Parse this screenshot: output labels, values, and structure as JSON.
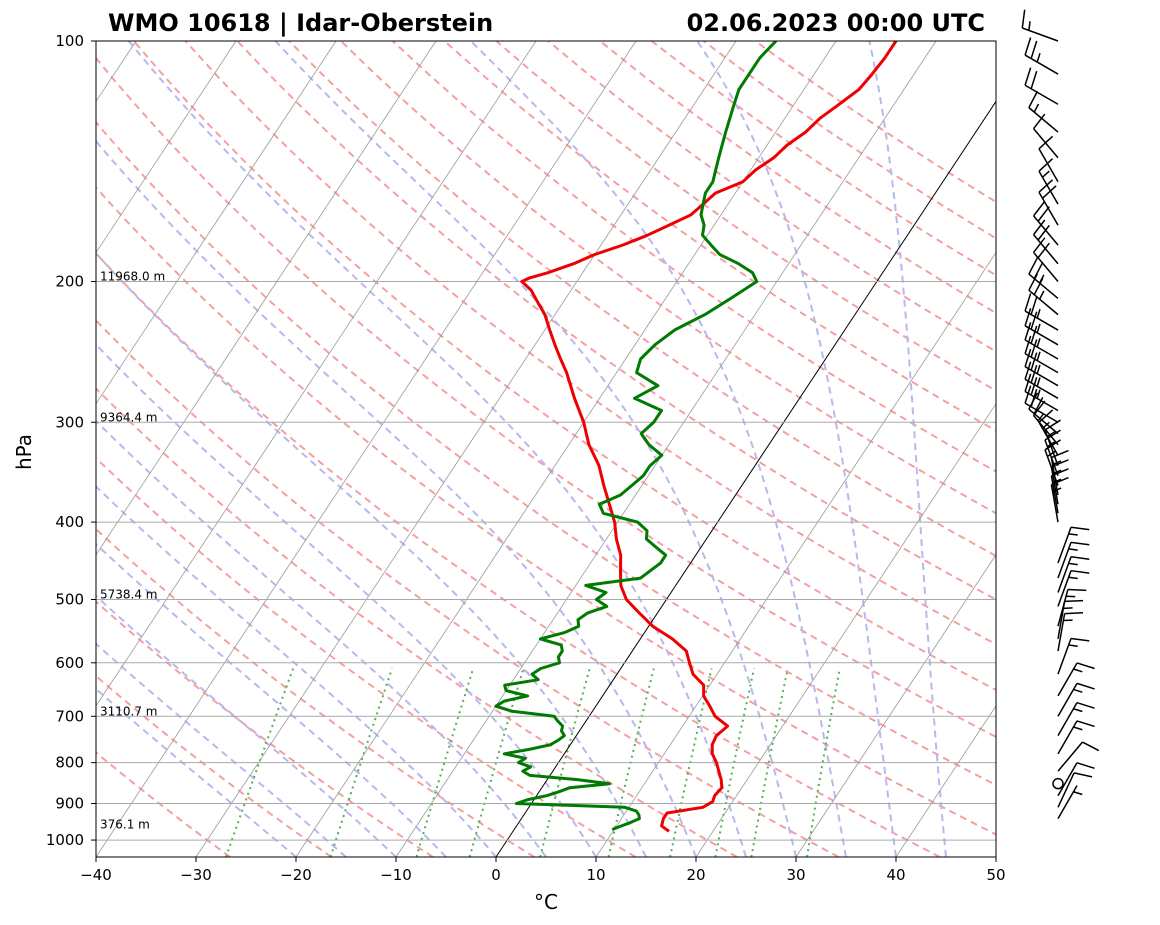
{
  "header": {
    "title_left": "WMO 10618 | Idar-Oberstein",
    "title_right": "02.06.2023 00:00 UTC"
  },
  "chart_data": {
    "type": "line",
    "subtype": "skew-t log-p",
    "xlabel": "°C",
    "ylabel": "hPa",
    "xlim": [
      -40,
      50
    ],
    "ylim": [
      1050,
      100
    ],
    "x_ticks": [
      -40,
      -30,
      -20,
      -10,
      0,
      10,
      20,
      30,
      40,
      50
    ],
    "x_tick_labels": [
      "−40",
      "−30",
      "−20",
      "−10",
      "0",
      "10",
      "20",
      "30",
      "40",
      "50"
    ],
    "y_ticks": [
      100,
      200,
      300,
      400,
      500,
      600,
      700,
      800,
      900,
      1000
    ],
    "y_tick_labels": [
      "100",
      "200",
      "300",
      "400",
      "500",
      "600",
      "700",
      "800",
      "900",
      "1000"
    ],
    "y_scale": "log",
    "grid": true,
    "height_labels": [
      {
        "p": 200,
        "text": "11968.0 m"
      },
      {
        "p": 300,
        "text": "9364.4 m"
      },
      {
        "p": 500,
        "text": "5738.4 m"
      },
      {
        "p": 700,
        "text": "3110.7 m"
      },
      {
        "p": 970,
        "text": "376.1 m"
      }
    ],
    "series": [
      {
        "color": "#ee0000",
        "p": [
          975,
          960,
          940,
          925,
          910,
          895,
          880,
          860,
          840,
          820,
          800,
          780,
          760,
          740,
          720,
          700,
          680,
          660,
          640,
          620,
          600,
          580,
          560,
          540,
          520,
          500,
          480,
          460,
          440,
          420,
          400,
          380,
          360,
          340,
          320,
          300,
          280,
          260,
          250,
          240,
          230,
          220,
          210,
          205,
          200,
          198,
          195,
          190,
          185,
          180,
          175,
          170,
          165,
          160,
          155,
          150,
          145,
          140,
          135,
          130,
          125,
          120,
          115,
          110,
          105,
          100
        ],
        "t": [
          15.6,
          14.5,
          14.2,
          14.2,
          17.4,
          18.0,
          17.8,
          18.0,
          17.4,
          16.6,
          15.8,
          14.8,
          14.2,
          14.0,
          14.5,
          12.6,
          11.4,
          10.1,
          9.4,
          7.6,
          6.5,
          5.4,
          3.2,
          0.4,
          -1.8,
          -4.0,
          -5.5,
          -6.5,
          -7.5,
          -9.0,
          -10.3,
          -12.0,
          -13.8,
          -15.6,
          -18.0,
          -20.0,
          -22.5,
          -25.0,
          -26.5,
          -28.0,
          -29.5,
          -31.0,
          -33.0,
          -34.0,
          -35.5,
          -35.0,
          -33.5,
          -31.5,
          -30.0,
          -27.8,
          -26.0,
          -24.5,
          -23.0,
          -22.5,
          -22.0,
          -20.0,
          -19.5,
          -18.5,
          -18.0,
          -17.0,
          -16.5,
          -15.5,
          -14.5,
          -14.2,
          -14.0,
          -14.0
        ]
      },
      {
        "color": "#007a00",
        "p": [
          970,
          960,
          950,
          940,
          930,
          920,
          910,
          900,
          890,
          880,
          870,
          860,
          850,
          840,
          830,
          820,
          810,
          800,
          790,
          780,
          770,
          760,
          750,
          740,
          730,
          720,
          710,
          700,
          690,
          680,
          670,
          660,
          650,
          640,
          630,
          620,
          610,
          600,
          590,
          580,
          570,
          560,
          550,
          540,
          530,
          520,
          510,
          500,
          490,
          480,
          470,
          460,
          450,
          440,
          430,
          420,
          410,
          400,
          390,
          380,
          370,
          360,
          350,
          340,
          330,
          320,
          310,
          300,
          290,
          280,
          270,
          260,
          250,
          240,
          230,
          220,
          210,
          200,
          195,
          190,
          185,
          180,
          175,
          170,
          165,
          160,
          155,
          150,
          145,
          140,
          135,
          130,
          125,
          120,
          115,
          110,
          105,
          100
        ],
        "td": [
          9.8,
          10.5,
          11.2,
          11.8,
          11.5,
          11.0,
          9.6,
          -1.5,
          -0.6,
          1.0,
          2.0,
          2.8,
          6.5,
          3.0,
          -2.0,
          -3.0,
          -2.5,
          -4.0,
          -3.6,
          -6.0,
          -3.8,
          -2.0,
          -1.5,
          -1.2,
          -1.8,
          -2.0,
          -2.8,
          -3.5,
          -8.0,
          -10.0,
          -9.5,
          -7.5,
          -10.0,
          -10.5,
          -7.5,
          -8.5,
          -8.0,
          -6.5,
          -7.0,
          -7.0,
          -7.5,
          -10.0,
          -8.0,
          -7.0,
          -7.5,
          -7.0,
          -5.5,
          -7.0,
          -6.5,
          -9.0,
          -4.0,
          -3.5,
          -3.0,
          -3.0,
          -4.5,
          -6.0,
          -6.5,
          -8.0,
          -12.0,
          -13.0,
          -11.5,
          -11.0,
          -10.5,
          -10.5,
          -10.0,
          -12.0,
          -13.5,
          -13.0,
          -13.0,
          -16.5,
          -15.0,
          -18.0,
          -18.5,
          -18.0,
          -17.0,
          -15.0,
          -13.5,
          -12.0,
          -13.0,
          -15.0,
          -17.5,
          -19.0,
          -20.5,
          -21.0,
          -22.0,
          -22.5,
          -23.0,
          -23.0,
          -23.5,
          -24.0,
          -24.5,
          -25.0,
          -25.5,
          -26.0,
          -26.5,
          -26.5,
          -26.5,
          -26.0
        ]
      }
    ],
    "wind_barbs": [
      {
        "p": 100,
        "speed": 15,
        "dir": 290
      },
      {
        "p": 110,
        "speed": 25,
        "dir": 300
      },
      {
        "p": 120,
        "speed": 20,
        "dir": 300
      },
      {
        "p": 130,
        "speed": 15,
        "dir": 310
      },
      {
        "p": 140,
        "speed": 10,
        "dir": 320
      },
      {
        "p": 150,
        "speed": 10,
        "dir": 330
      },
      {
        "p": 160,
        "speed": 15,
        "dir": 330
      },
      {
        "p": 170,
        "speed": 20,
        "dir": 330
      },
      {
        "p": 180,
        "speed": 20,
        "dir": 320
      },
      {
        "p": 190,
        "speed": 20,
        "dir": 320
      },
      {
        "p": 200,
        "speed": 20,
        "dir": 320
      },
      {
        "p": 210,
        "speed": 25,
        "dir": 310
      },
      {
        "p": 220,
        "speed": 25,
        "dir": 310
      },
      {
        "p": 230,
        "speed": 25,
        "dir": 300
      },
      {
        "p": 240,
        "speed": 25,
        "dir": 300
      },
      {
        "p": 250,
        "speed": 25,
        "dir": 300
      },
      {
        "p": 260,
        "speed": 25,
        "dir": 300
      },
      {
        "p": 270,
        "speed": 25,
        "dir": 300
      },
      {
        "p": 280,
        "speed": 25,
        "dir": 300
      },
      {
        "p": 290,
        "speed": 25,
        "dir": 300
      },
      {
        "p": 300,
        "speed": 20,
        "dir": 300
      },
      {
        "p": 310,
        "speed": 20,
        "dir": 310
      },
      {
        "p": 320,
        "speed": 15,
        "dir": 320
      },
      {
        "p": 330,
        "speed": 15,
        "dir": 330
      },
      {
        "p": 340,
        "speed": 15,
        "dir": 340
      },
      {
        "p": 350,
        "speed": 15,
        "dir": 340
      },
      {
        "p": 360,
        "speed": 15,
        "dir": 340
      },
      {
        "p": 370,
        "speed": 15,
        "dir": 350
      },
      {
        "p": 380,
        "speed": 15,
        "dir": 350
      },
      {
        "p": 390,
        "speed": 15,
        "dir": 350
      },
      {
        "p": 400,
        "speed": 15,
        "dir": 350
      },
      {
        "p": 450,
        "speed": 15,
        "dir": 20
      },
      {
        "p": 470,
        "speed": 15,
        "dir": 20
      },
      {
        "p": 490,
        "speed": 15,
        "dir": 20
      },
      {
        "p": 510,
        "speed": 15,
        "dir": 20
      },
      {
        "p": 540,
        "speed": 15,
        "dir": 15
      },
      {
        "p": 560,
        "speed": 15,
        "dir": 10
      },
      {
        "p": 580,
        "speed": 15,
        "dir": 10
      },
      {
        "p": 620,
        "speed": 15,
        "dir": 20
      },
      {
        "p": 660,
        "speed": 15,
        "dir": 30
      },
      {
        "p": 700,
        "speed": 15,
        "dir": 30
      },
      {
        "p": 740,
        "speed": 15,
        "dir": 30
      },
      {
        "p": 780,
        "speed": 15,
        "dir": 30
      },
      {
        "p": 820,
        "speed": 10,
        "dir": 40
      },
      {
        "p": 850,
        "speed": 0,
        "dir": 0
      },
      {
        "p": 880,
        "speed": 10,
        "dir": 30
      },
      {
        "p": 910,
        "speed": 10,
        "dir": 25
      },
      {
        "p": 940,
        "speed": 5,
        "dir": 30
      }
    ]
  }
}
